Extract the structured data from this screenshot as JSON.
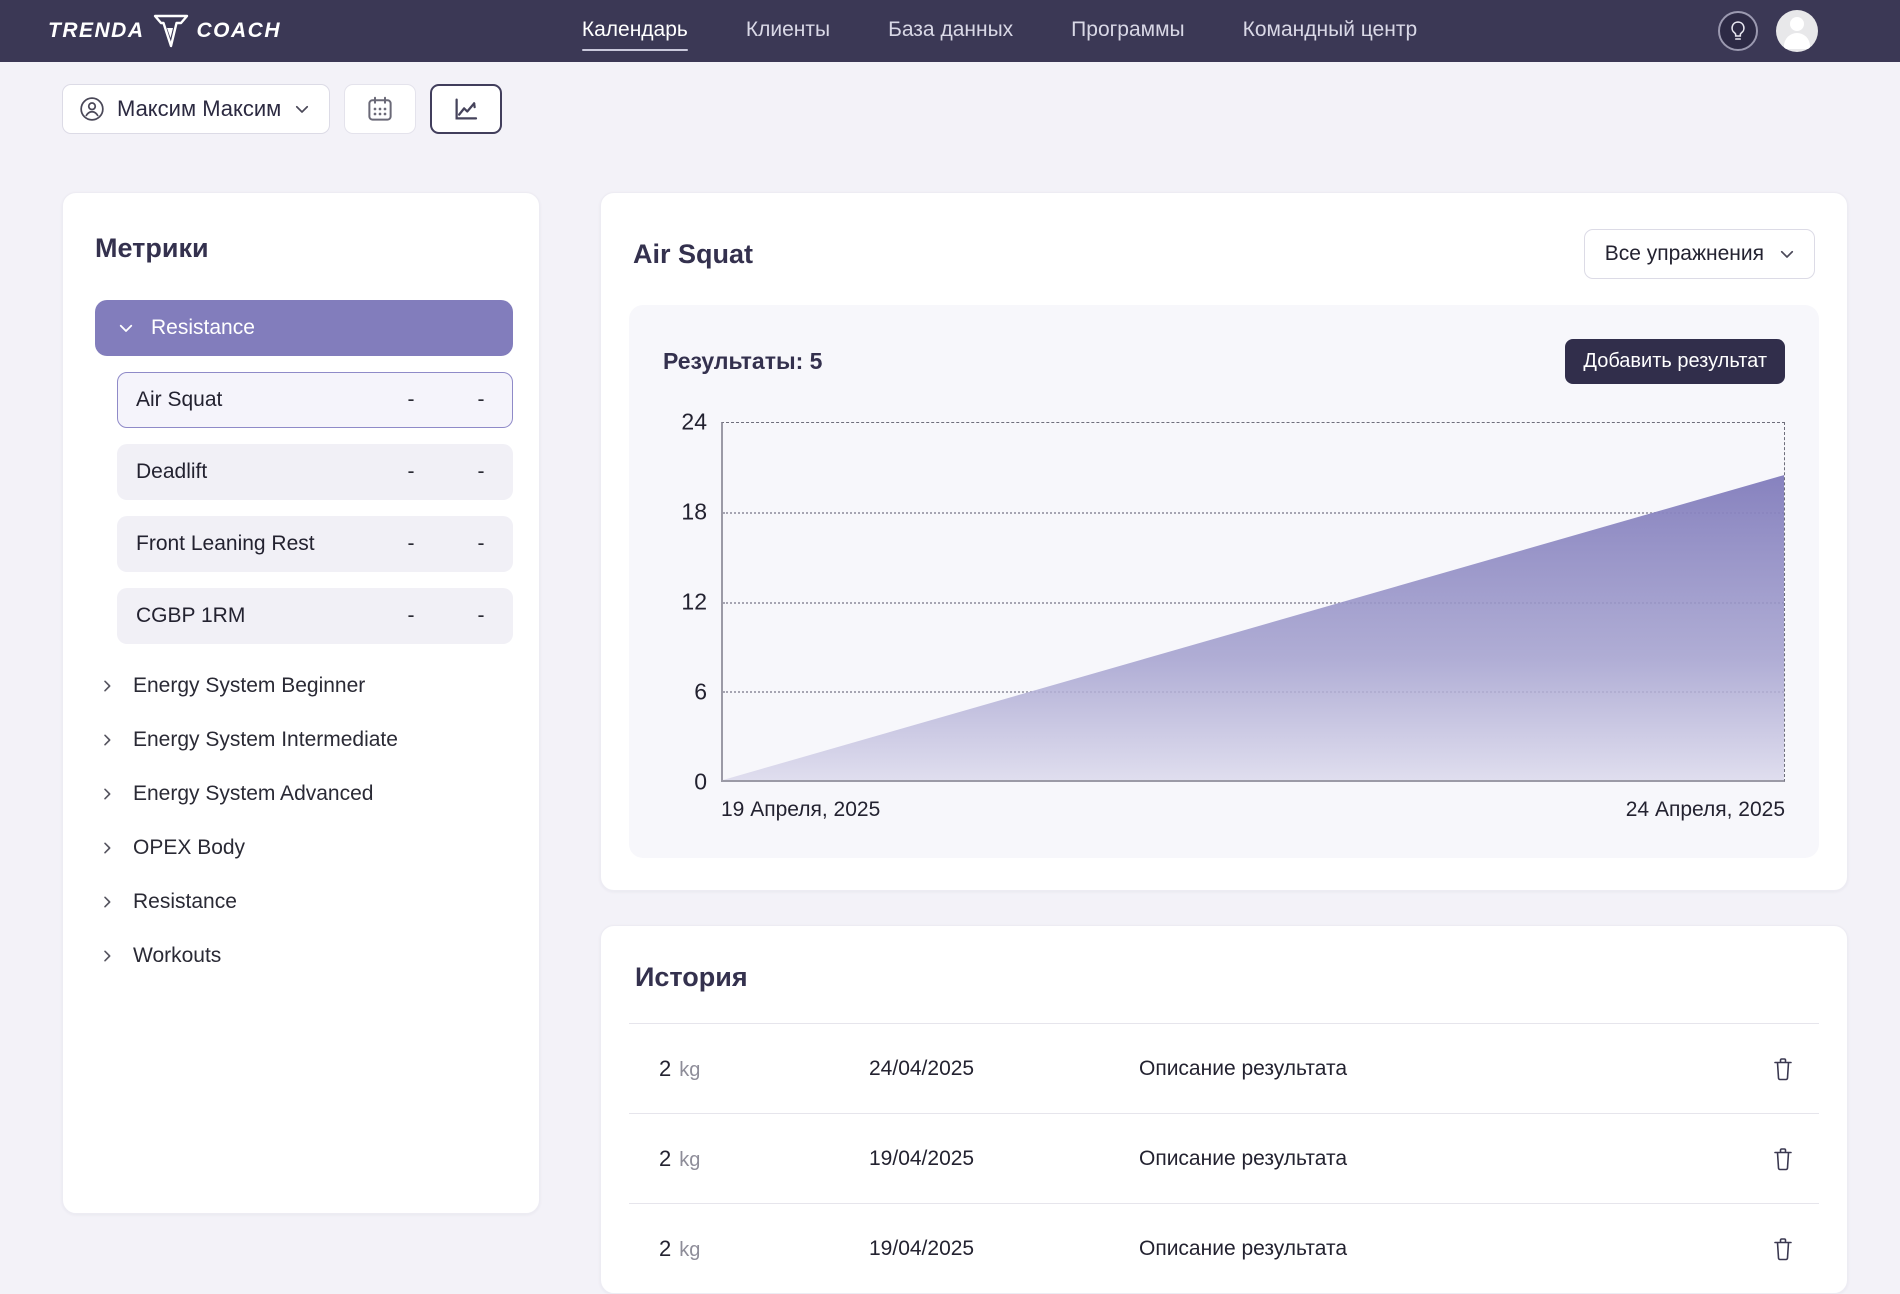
{
  "header": {
    "logo_left": "TRENDA",
    "logo_right": "COACH",
    "nav": [
      {
        "label": "Календарь",
        "active": true
      },
      {
        "label": "Клиенты",
        "active": false
      },
      {
        "label": "База данных",
        "active": false
      },
      {
        "label": "Программы",
        "active": false
      },
      {
        "label": "Командный центр",
        "active": false
      }
    ],
    "icons": [
      "lightbulb-icon",
      "user-avatar"
    ]
  },
  "toolbar": {
    "client_name": "Максим Максим",
    "buttons": [
      "calendar-view-button",
      "chart-view-button"
    ]
  },
  "sidebar": {
    "title": "Метрики",
    "expanded_group": {
      "label": "Resistance"
    },
    "exercises": [
      {
        "name": "Air Squat",
        "v1": "-",
        "v2": "-",
        "selected": true
      },
      {
        "name": "Deadlift",
        "v1": "-",
        "v2": "-",
        "selected": false
      },
      {
        "name": "Front Leaning Rest",
        "v1": "-",
        "v2": "-",
        "selected": false
      },
      {
        "name": "CGBP 1RM",
        "v1": "-",
        "v2": "-",
        "selected": false
      }
    ],
    "categories": [
      {
        "label": "Energy System Beginner"
      },
      {
        "label": "Energy System Intermediate"
      },
      {
        "label": "Energy System Advanced"
      },
      {
        "label": "OPEX Body"
      },
      {
        "label": "Resistance"
      },
      {
        "label": "Workouts"
      }
    ]
  },
  "main": {
    "title": "Air Squat",
    "filter_label": "Все упражнения",
    "results_label": "Результаты: 5",
    "add_button_label": "Добавить результат"
  },
  "chart_data": {
    "type": "area",
    "title": "Air Squat",
    "results_count": 5,
    "series": [
      {
        "name": "Air Squat",
        "x": [
          "19 Апреля, 2025",
          "24 Апреля, 2025"
        ],
        "values": [
          0,
          20.5
        ]
      }
    ],
    "x_labels": {
      "left": "19 Апреля, 2025",
      "right": "24 Апреля, 2025"
    },
    "ylim": [
      0,
      24
    ],
    "yticks": [
      0,
      6,
      12,
      18,
      24
    ],
    "grid": "horizontal-dotted",
    "legend": "none",
    "colors": {
      "area_top": "#827DBC",
      "area_bottom": "#DBD9EC"
    }
  },
  "history": {
    "title": "История",
    "rows": [
      {
        "value": "2",
        "unit": "kg",
        "date": "24/04/2025",
        "description": "Описание результата"
      },
      {
        "value": "2",
        "unit": "kg",
        "date": "19/04/2025",
        "description": "Описание результата"
      },
      {
        "value": "2",
        "unit": "kg",
        "date": "19/04/2025",
        "description": "Описание результата"
      }
    ]
  }
}
